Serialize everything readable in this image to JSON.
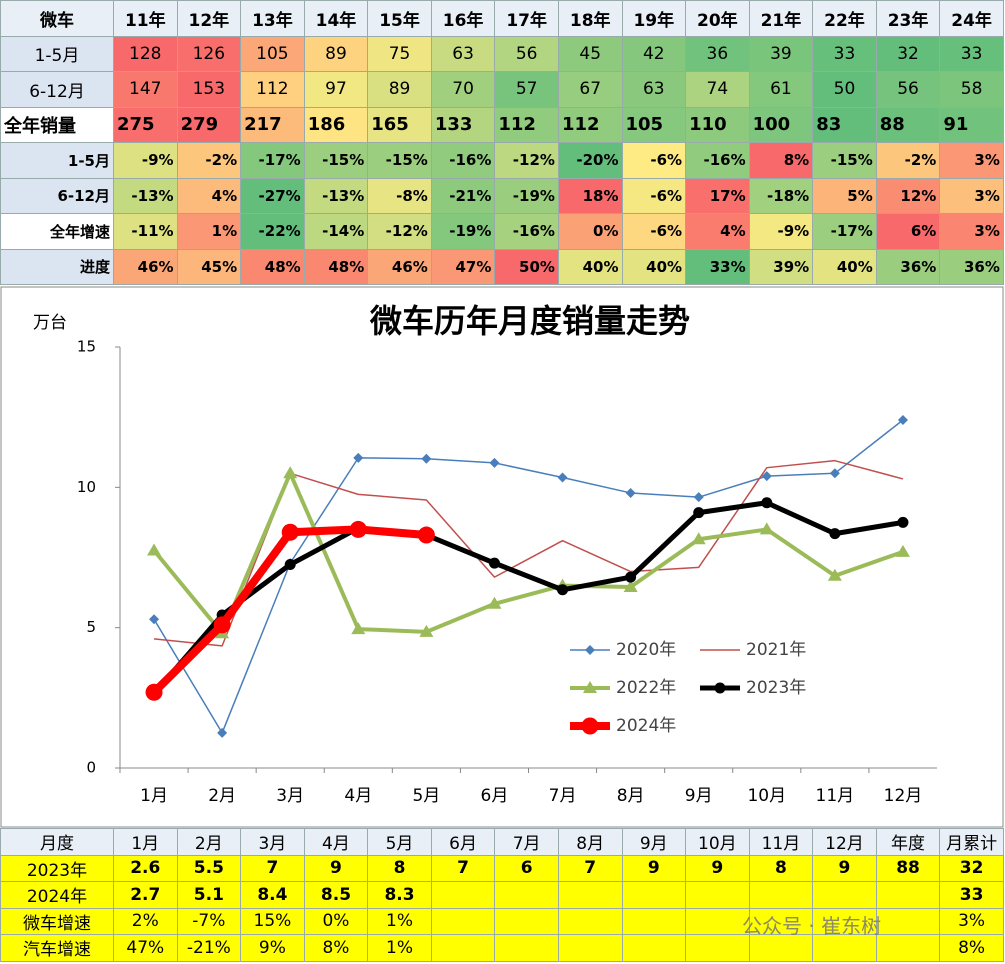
{
  "top_table": {
    "header": [
      "微车",
      "11年",
      "12年",
      "13年",
      "14年",
      "15年",
      "16年",
      "17年",
      "18年",
      "19年",
      "20年",
      "21年",
      "22年",
      "23年",
      "24年"
    ],
    "rows": [
      [
        "1-5月",
        "128",
        "126",
        "105",
        "89",
        "75",
        "63",
        "56",
        "45",
        "42",
        "36",
        "39",
        "33",
        "32",
        "33"
      ],
      [
        "6-12月",
        "147",
        "153",
        "112",
        "97",
        "89",
        "70",
        "57",
        "67",
        "63",
        "74",
        "61",
        "50",
        "56",
        "58"
      ],
      [
        "全年销量",
        "275",
        "279",
        "217",
        "186",
        "165",
        "133",
        "112",
        "112",
        "105",
        "110",
        "100",
        "83",
        "88",
        "91"
      ],
      [
        "1-5月",
        "-9%",
        "-2%",
        "-17%",
        "-15%",
        "-15%",
        "-16%",
        "-12%",
        "-20%",
        "-6%",
        "-16%",
        "8%",
        "-15%",
        "-2%",
        "3%"
      ],
      [
        "6-12月",
        "-13%",
        "4%",
        "-27%",
        "-13%",
        "-8%",
        "-21%",
        "-19%",
        "18%",
        "-6%",
        "17%",
        "-18%",
        "5%",
        "12%",
        "3%"
      ],
      [
        "全年增速",
        "-11%",
        "1%",
        "-22%",
        "-14%",
        "-12%",
        "-19%",
        "-16%",
        "0%",
        "-6%",
        "4%",
        "-9%",
        "-17%",
        "6%",
        "3%"
      ],
      [
        "进度",
        "46%",
        "45%",
        "48%",
        "48%",
        "46%",
        "47%",
        "50%",
        "40%",
        "40%",
        "33%",
        "39%",
        "40%",
        "36%",
        "36%"
      ]
    ]
  },
  "chart_data": {
    "type": "line",
    "title": "微车历年月度销量走势",
    "y_label": "万台",
    "categories": [
      "1月",
      "2月",
      "3月",
      "4月",
      "5月",
      "6月",
      "7月",
      "8月",
      "9月",
      "10月",
      "11月",
      "12月"
    ],
    "ylim": [
      0,
      15
    ],
    "yticks": [
      0,
      5,
      10,
      15
    ],
    "grid": false,
    "legend": "lower right",
    "series": [
      {
        "name": "2020年",
        "color": "#4a7ebb",
        "marker": "diamond",
        "line_width": 1.5,
        "values": [
          5.3,
          1.25,
          7.3,
          11.05,
          11.02,
          10.87,
          10.35,
          9.8,
          9.65,
          10.4,
          10.5,
          12.4
        ]
      },
      {
        "name": "2021年",
        "color": "#c0504d",
        "marker": "none",
        "line_width": 1.5,
        "values": [
          4.6,
          4.35,
          10.5,
          9.75,
          9.55,
          6.8,
          8.1,
          7.0,
          7.15,
          10.7,
          10.95,
          10.3
        ]
      },
      {
        "name": "2022年",
        "color": "#9bbb59",
        "marker": "triangle",
        "line_width": 4,
        "values": [
          7.75,
          4.8,
          10.5,
          4.95,
          4.85,
          5.85,
          6.5,
          6.45,
          8.15,
          8.5,
          6.85,
          7.7
        ]
      },
      {
        "name": "2023年",
        "color": "#000000",
        "marker": "circle",
        "line_width": 5,
        "values": [
          2.65,
          5.45,
          7.25,
          8.55,
          8.3,
          7.3,
          6.35,
          6.8,
          9.1,
          9.45,
          8.35,
          8.75
        ]
      },
      {
        "name": "2024年",
        "color": "#ff0000",
        "marker": "bigcircle",
        "line_width": 8,
        "values": [
          2.7,
          5.1,
          8.4,
          8.5,
          8.3,
          null,
          null,
          null,
          null,
          null,
          null,
          null
        ]
      }
    ]
  },
  "bottom_table": {
    "header": [
      "月度",
      "1月",
      "2月",
      "3月",
      "4月",
      "5月",
      "6月",
      "7月",
      "8月",
      "9月",
      "10月",
      "11月",
      "12月",
      "年度",
      "月累计"
    ],
    "rows": [
      [
        "2023年",
        "2.6",
        "5.5",
        "7",
        "9",
        "8",
        "7",
        "6",
        "7",
        "9",
        "9",
        "8",
        "9",
        "88",
        "32"
      ],
      [
        "2024年",
        "2.7",
        "5.1",
        "8.4",
        "8.5",
        "8.3",
        null,
        null,
        null,
        null,
        null,
        null,
        null,
        null,
        "33"
      ],
      [
        "微车增速",
        "2%",
        "-7%",
        "15%",
        "0%",
        "1%",
        null,
        null,
        null,
        null,
        null,
        null,
        null,
        null,
        "3%"
      ],
      [
        "汽车增速",
        "47%",
        "-21%",
        "9%",
        "8%",
        "1%",
        null,
        null,
        null,
        null,
        null,
        null,
        null,
        null,
        "8%"
      ]
    ]
  },
  "watermark": "公众号 · 崔东树"
}
